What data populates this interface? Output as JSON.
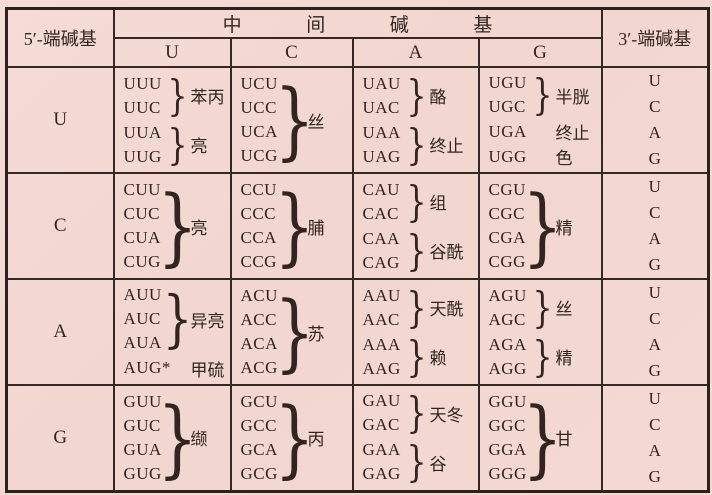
{
  "header": {
    "left": "5′-端碱基",
    "middle": "中间碱基",
    "right": "3′-端碱基",
    "bases": [
      "U",
      "C",
      "A",
      "G"
    ]
  },
  "colors": {
    "paper_background": "#f4d9d3",
    "line": "#352825",
    "text": "#32241f"
  },
  "rows": [
    {
      "base": "U",
      "cells": [
        {
          "groups": [
            {
              "codons": [
                "UUU",
                "UUC"
              ],
              "brace": true,
              "label": "苯丙"
            },
            {
              "codons": [
                "UUA",
                "UUG"
              ],
              "brace": true,
              "label": "亮"
            }
          ]
        },
        {
          "groups": [
            {
              "codons": [
                "UCU",
                "UCC",
                "UCA",
                "UCG"
              ],
              "brace": true,
              "label": "丝"
            }
          ]
        },
        {
          "groups": [
            {
              "codons": [
                "UAU",
                "UAC"
              ],
              "brace": true,
              "label": "酪"
            },
            {
              "codons": [
                "UAA",
                "UAG"
              ],
              "brace": true,
              "label": "终止"
            }
          ]
        },
        {
          "groups": [
            {
              "codons": [
                "UGU",
                "UGC"
              ],
              "brace": true,
              "label": "半胱"
            },
            {
              "codons": [
                "UGA"
              ],
              "brace": false,
              "label": "终止"
            },
            {
              "codons": [
                "UGG"
              ],
              "brace": false,
              "label": "色"
            }
          ]
        }
      ],
      "right": [
        "U",
        "C",
        "A",
        "G"
      ]
    },
    {
      "base": "C",
      "cells": [
        {
          "groups": [
            {
              "codons": [
                "CUU",
                "CUC",
                "CUA",
                "CUG"
              ],
              "brace": true,
              "label": "亮"
            }
          ]
        },
        {
          "groups": [
            {
              "codons": [
                "CCU",
                "CCC",
                "CCA",
                "CCG"
              ],
              "brace": true,
              "label": "脯"
            }
          ]
        },
        {
          "groups": [
            {
              "codons": [
                "CAU",
                "CAC"
              ],
              "brace": true,
              "label": "组"
            },
            {
              "codons": [
                "CAA",
                "CAG"
              ],
              "brace": true,
              "label": "谷酰"
            }
          ]
        },
        {
          "groups": [
            {
              "codons": [
                "CGU",
                "CGC",
                "CGA",
                "CGG"
              ],
              "brace": true,
              "label": "精"
            }
          ]
        }
      ],
      "right": [
        "U",
        "C",
        "A",
        "G"
      ]
    },
    {
      "base": "A",
      "cells": [
        {
          "groups": [
            {
              "codons": [
                "AUU",
                "AUC",
                "AUA"
              ],
              "brace": true,
              "label": "异亮"
            },
            {
              "codons": [
                "AUG*"
              ],
              "brace": false,
              "label": "甲硫"
            }
          ]
        },
        {
          "groups": [
            {
              "codons": [
                "ACU",
                "ACC",
                "ACA",
                "ACG"
              ],
              "brace": true,
              "label": "苏"
            }
          ]
        },
        {
          "groups": [
            {
              "codons": [
                "AAU",
                "AAC"
              ],
              "brace": true,
              "label": "天酰"
            },
            {
              "codons": [
                "AAA",
                "AAG"
              ],
              "brace": true,
              "label": "赖"
            }
          ]
        },
        {
          "groups": [
            {
              "codons": [
                "AGU",
                "AGC"
              ],
              "brace": true,
              "label": "丝"
            },
            {
              "codons": [
                "AGA",
                "AGG"
              ],
              "brace": true,
              "label": "精"
            }
          ]
        }
      ],
      "right": [
        "U",
        "C",
        "A",
        "G"
      ]
    },
    {
      "base": "G",
      "cells": [
        {
          "groups": [
            {
              "codons": [
                "GUU",
                "GUC",
                "GUA",
                "GUG"
              ],
              "brace": true,
              "label": "缬"
            }
          ]
        },
        {
          "groups": [
            {
              "codons": [
                "GCU",
                "GCC",
                "GCA",
                "GCG"
              ],
              "brace": true,
              "label": "丙"
            }
          ]
        },
        {
          "groups": [
            {
              "codons": [
                "GAU",
                "GAC"
              ],
              "brace": true,
              "label": "天冬"
            },
            {
              "codons": [
                "GAA",
                "GAG"
              ],
              "brace": true,
              "label": "谷"
            }
          ]
        },
        {
          "groups": [
            {
              "codons": [
                "GGU",
                "GGC",
                "GGA",
                "GGG"
              ],
              "brace": true,
              "label": "甘"
            }
          ]
        }
      ],
      "right": [
        "U",
        "C",
        "A",
        "G"
      ]
    }
  ]
}
